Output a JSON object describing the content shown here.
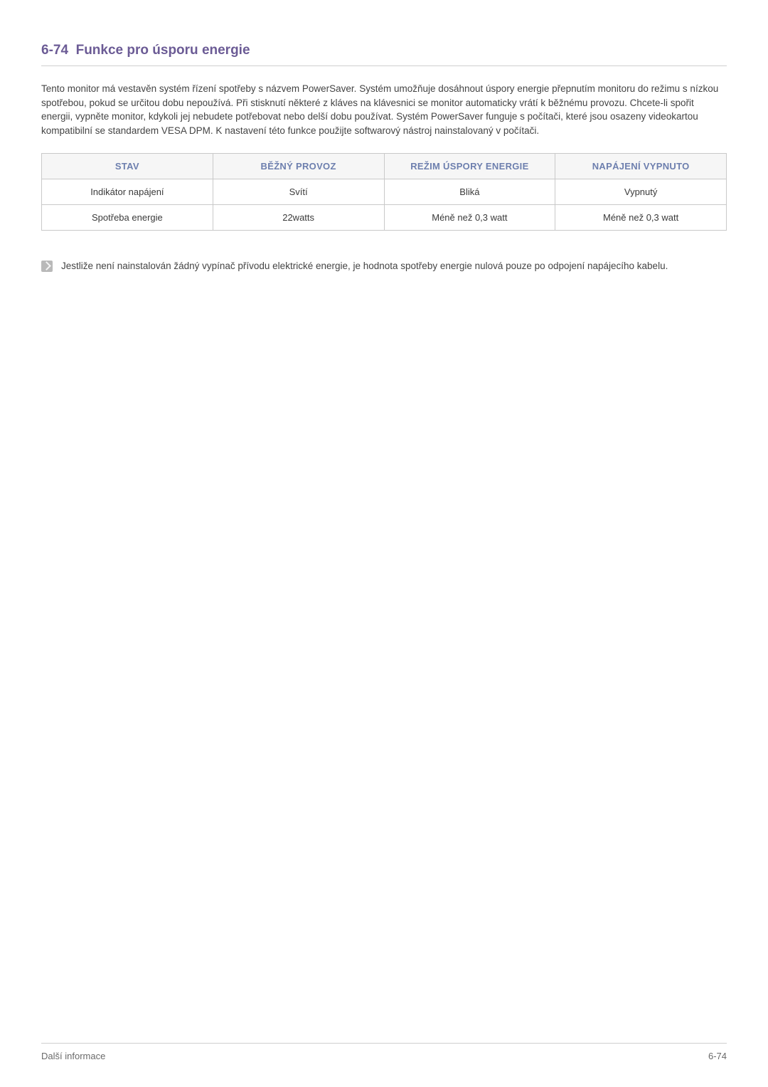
{
  "colors": {
    "heading": "#6b5b95",
    "table_header_text": "#6d7fae",
    "table_header_bg": "#f6f6f6",
    "border": "#c9c9c9",
    "body_text": "#444444",
    "rule": "#cfcfcf",
    "note_icon_bg": "#b9b9b9",
    "footer_text": "#6a6a6a",
    "background": "#ffffff"
  },
  "typography": {
    "heading_size_pt": 14,
    "body_size_pt": 10,
    "table_size_pt": 10,
    "font_family": "Arial"
  },
  "heading": {
    "number": "6-74",
    "title": "Funkce pro úsporu energie"
  },
  "intro": "Tento monitor má vestavěn systém řízení spotřeby s názvem PowerSaver. Systém umožňuje dosáhnout úspory energie přepnutím monitoru do režimu s nízkou spotřebou, pokud se určitou dobu nepoužívá. Při stisknutí některé z kláves na klávesnici se monitor automaticky vrátí k běžnému provozu. Chcete-li spořit energii, vypněte monitor, kdykoli jej nebudete potřebovat nebo delší dobu používat. Systém PowerSaver funguje s počítači, které jsou osazeny videokartou kompatibilní se standardem VESA DPM. K nastavení této funkce použijte softwarový nástroj nainstalovaný v počítači.",
  "table": {
    "type": "table",
    "column_widths_pct": [
      25,
      25,
      25,
      25
    ],
    "alignment": "center",
    "headers": [
      "STAV",
      "BĚŽNÝ PROVOZ",
      "REŽIM ÚSPORY ENERGIE",
      "NAPÁJENÍ VYPNUTO"
    ],
    "rows": [
      [
        "Indikátor napájení",
        "Svítí",
        "Bliká",
        "Vypnutý"
      ],
      [
        "Spotřeba energie",
        "22watts",
        "Méně než 0,3 watt",
        "Méně než 0,3 watt"
      ]
    ]
  },
  "note": "Jestliže není nainstalován žádný vypínač přívodu elektrické energie, je hodnota spotřeby energie nulová pouze po odpojení napájecího kabelu.",
  "footer": {
    "left": "Další informace",
    "right": "6-74"
  }
}
